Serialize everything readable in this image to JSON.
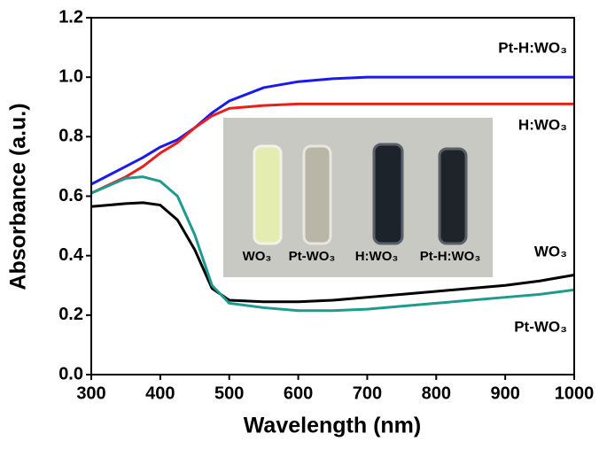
{
  "chart_data": {
    "type": "line",
    "xlabel": "Wavelength (nm)",
    "ylabel": "Absorbance (a.u.)",
    "x": [
      300,
      350,
      375,
      400,
      425,
      450,
      475,
      500,
      550,
      600,
      650,
      700,
      750,
      800,
      850,
      900,
      950,
      1000
    ],
    "series": [
      {
        "name": "Pt-H:WO₃",
        "color": "#1a1aee",
        "values": [
          0.64,
          0.7,
          0.73,
          0.765,
          0.79,
          0.83,
          0.88,
          0.92,
          0.965,
          0.985,
          0.995,
          1.0,
          1.0,
          1.0,
          1.0,
          1.0,
          1.0,
          1.0
        ]
      },
      {
        "name": "H:WO₃",
        "color": "#e8201c",
        "values": [
          0.61,
          0.665,
          0.7,
          0.745,
          0.78,
          0.83,
          0.87,
          0.895,
          0.905,
          0.91,
          0.91,
          0.91,
          0.91,
          0.91,
          0.91,
          0.91,
          0.91,
          0.91
        ]
      },
      {
        "name": "WO₃",
        "color": "#000000",
        "values": [
          0.565,
          0.575,
          0.578,
          0.57,
          0.52,
          0.42,
          0.29,
          0.25,
          0.245,
          0.245,
          0.25,
          0.26,
          0.27,
          0.28,
          0.29,
          0.3,
          0.315,
          0.335
        ]
      },
      {
        "name": "Pt-WO₃",
        "color": "#1f9a8e",
        "values": [
          0.61,
          0.66,
          0.665,
          0.65,
          0.6,
          0.47,
          0.3,
          0.24,
          0.225,
          0.215,
          0.215,
          0.22,
          0.23,
          0.24,
          0.25,
          0.26,
          0.27,
          0.285
        ]
      }
    ],
    "xlim": [
      300,
      1000
    ],
    "xticks": [
      300,
      400,
      500,
      600,
      700,
      800,
      900,
      1000
    ],
    "ylim": [
      0,
      1.2
    ],
    "yticks": [
      {
        "value": 0,
        "label": "0.0"
      },
      0.2,
      0.4,
      0.6,
      0.8,
      {
        "value": 1,
        "label": "1.0"
      },
      1.2
    ],
    "inset_labels": [
      "WO₃",
      "Pt-WO₃",
      "H:WO₃",
      "Pt-H:WO₃"
    ]
  }
}
